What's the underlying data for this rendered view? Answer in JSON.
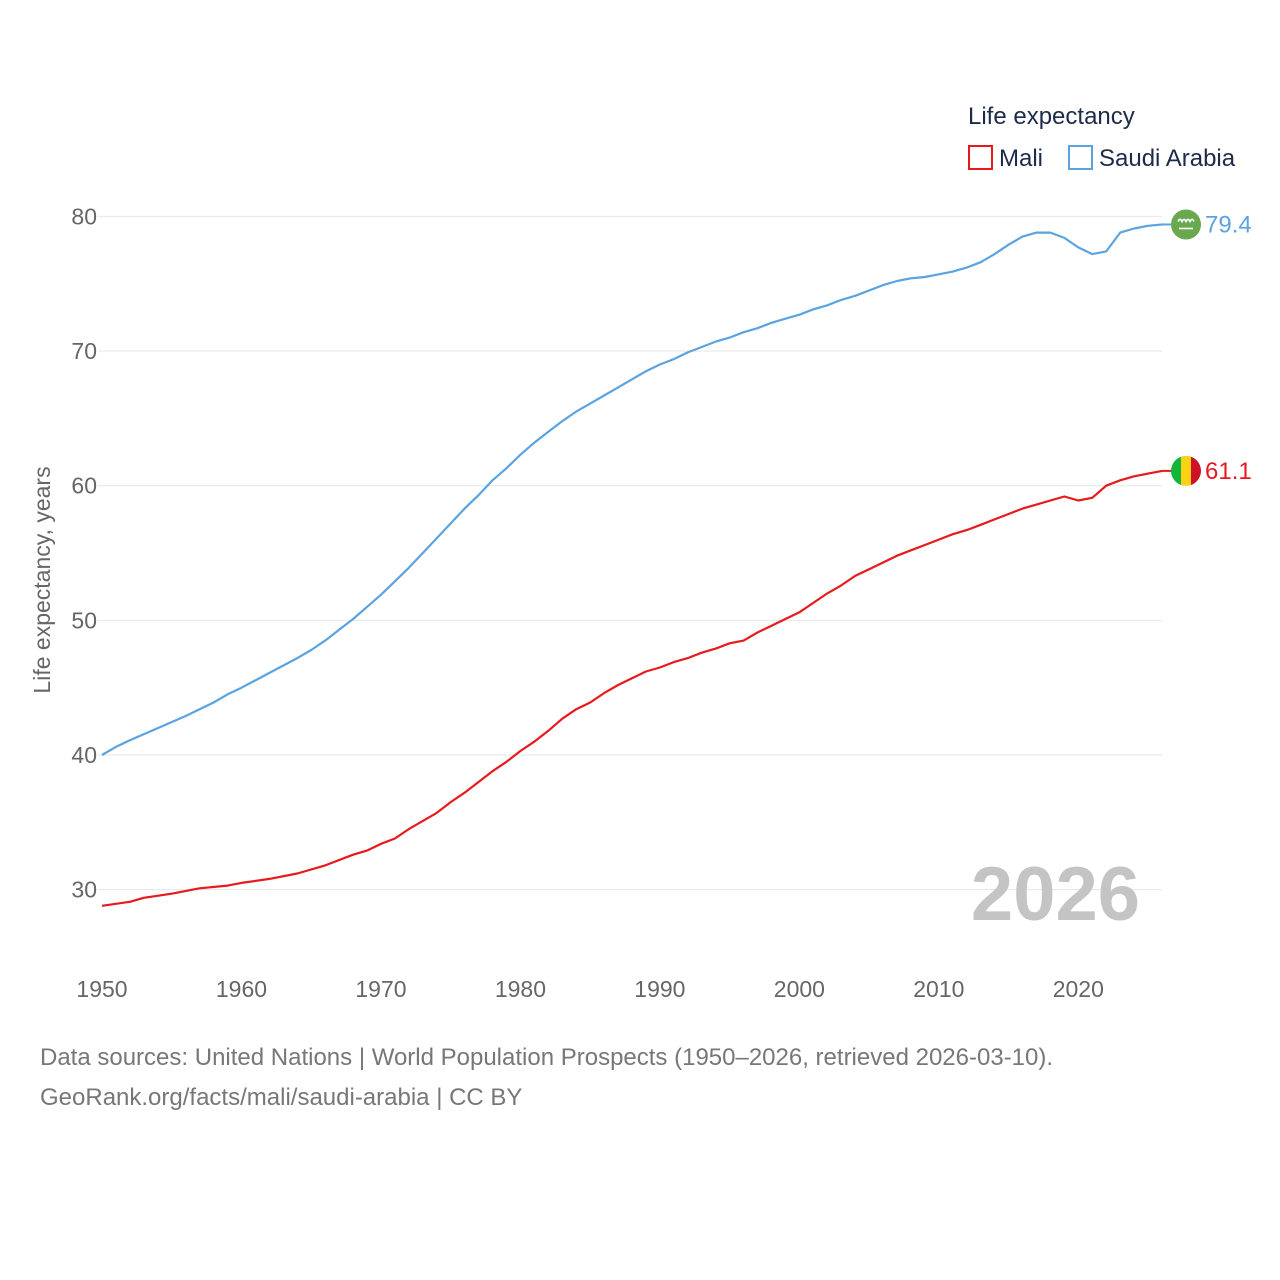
{
  "chart_data": {
    "type": "line",
    "title": "Life expectancy",
    "ylabel": "Life expectancy, years",
    "xlabel": "",
    "xlim": [
      1950,
      2026
    ],
    "ylim": [
      25,
      83
    ],
    "x_ticks": [
      "1950",
      "1960",
      "1970",
      "1980",
      "1990",
      "2000",
      "2010",
      "2020"
    ],
    "y_ticks": [
      "30",
      "40",
      "50",
      "60",
      "70",
      "80"
    ],
    "year_label": "2026",
    "series": [
      {
        "name": "Mali",
        "color": "#e8191c",
        "icon": "mali-flag-icon",
        "end_label": "61.1",
        "points": [
          [
            1950,
            28.8
          ],
          [
            1952,
            29.1
          ],
          [
            1953,
            29.4
          ],
          [
            1955,
            29.7
          ],
          [
            1957,
            30.1
          ],
          [
            1959,
            30.3
          ],
          [
            1960,
            30.5
          ],
          [
            1962,
            30.8
          ],
          [
            1964,
            31.2
          ],
          [
            1966,
            31.8
          ],
          [
            1968,
            32.6
          ],
          [
            1969,
            32.9
          ],
          [
            1970,
            33.4
          ],
          [
            1971,
            33.8
          ],
          [
            1972,
            34.5
          ],
          [
            1974,
            35.7
          ],
          [
            1975,
            36.5
          ],
          [
            1976,
            37.2
          ],
          [
            1978,
            38.8
          ],
          [
            1979,
            39.5
          ],
          [
            1980,
            40.3
          ],
          [
            1981,
            41.0
          ],
          [
            1982,
            41.8
          ],
          [
            1983,
            42.7
          ],
          [
            1984,
            43.4
          ],
          [
            1985,
            43.9
          ],
          [
            1986,
            44.6
          ],
          [
            1987,
            45.2
          ],
          [
            1988,
            45.7
          ],
          [
            1989,
            46.2
          ],
          [
            1990,
            46.5
          ],
          [
            1991,
            46.9
          ],
          [
            1992,
            47.2
          ],
          [
            1993,
            47.6
          ],
          [
            1994,
            47.9
          ],
          [
            1995,
            48.3
          ],
          [
            1996,
            48.5
          ],
          [
            1997,
            49.1
          ],
          [
            1998,
            49.6
          ],
          [
            1999,
            50.1
          ],
          [
            2000,
            50.6
          ],
          [
            2001,
            51.3
          ],
          [
            2002,
            52.0
          ],
          [
            2003,
            52.6
          ],
          [
            2004,
            53.3
          ],
          [
            2005,
            53.8
          ],
          [
            2006,
            54.3
          ],
          [
            2007,
            54.8
          ],
          [
            2008,
            55.2
          ],
          [
            2009,
            55.6
          ],
          [
            2010,
            56.0
          ],
          [
            2011,
            56.4
          ],
          [
            2012,
            56.7
          ],
          [
            2013,
            57.1
          ],
          [
            2014,
            57.5
          ],
          [
            2015,
            57.9
          ],
          [
            2016,
            58.3
          ],
          [
            2017,
            58.6
          ],
          [
            2018,
            58.9
          ],
          [
            2019,
            59.2
          ],
          [
            2020,
            58.9
          ],
          [
            2021,
            59.1
          ],
          [
            2022,
            60.0
          ],
          [
            2023,
            60.4
          ],
          [
            2024,
            60.7
          ],
          [
            2025,
            60.9
          ],
          [
            2026,
            61.1
          ]
        ]
      },
      {
        "name": "Saudi Arabia",
        "color": "#5ba3e0",
        "icon": "saudi-arabia-flag-icon",
        "end_label": "79.4",
        "points": [
          [
            1950,
            40.0
          ],
          [
            1951,
            40.6
          ],
          [
            1952,
            41.1
          ],
          [
            1954,
            42.0
          ],
          [
            1956,
            42.9
          ],
          [
            1957,
            43.4
          ],
          [
            1958,
            43.9
          ],
          [
            1959,
            44.5
          ],
          [
            1960,
            45.0
          ],
          [
            1962,
            46.1
          ],
          [
            1964,
            47.2
          ],
          [
            1965,
            47.8
          ],
          [
            1966,
            48.5
          ],
          [
            1967,
            49.3
          ],
          [
            1968,
            50.1
          ],
          [
            1969,
            51.0
          ],
          [
            1970,
            51.9
          ],
          [
            1971,
            52.9
          ],
          [
            1972,
            53.9
          ],
          [
            1973,
            55.0
          ],
          [
            1974,
            56.1
          ],
          [
            1975,
            57.2
          ],
          [
            1976,
            58.3
          ],
          [
            1977,
            59.3
          ],
          [
            1978,
            60.4
          ],
          [
            1979,
            61.3
          ],
          [
            1980,
            62.3
          ],
          [
            1981,
            63.2
          ],
          [
            1982,
            64.0
          ],
          [
            1983,
            64.8
          ],
          [
            1984,
            65.5
          ],
          [
            1985,
            66.1
          ],
          [
            1986,
            66.7
          ],
          [
            1987,
            67.3
          ],
          [
            1988,
            67.9
          ],
          [
            1989,
            68.5
          ],
          [
            1990,
            69.0
          ],
          [
            1991,
            69.4
          ],
          [
            1992,
            69.9
          ],
          [
            1993,
            70.3
          ],
          [
            1994,
            70.7
          ],
          [
            1995,
            71.0
          ],
          [
            1996,
            71.4
          ],
          [
            1997,
            71.7
          ],
          [
            1998,
            72.1
          ],
          [
            1999,
            72.4
          ],
          [
            2000,
            72.7
          ],
          [
            2001,
            73.1
          ],
          [
            2002,
            73.4
          ],
          [
            2003,
            73.8
          ],
          [
            2004,
            74.1
          ],
          [
            2005,
            74.5
          ],
          [
            2006,
            74.9
          ],
          [
            2007,
            75.2
          ],
          [
            2008,
            75.4
          ],
          [
            2009,
            75.5
          ],
          [
            2010,
            75.7
          ],
          [
            2011,
            75.9
          ],
          [
            2012,
            76.2
          ],
          [
            2013,
            76.6
          ],
          [
            2014,
            77.2
          ],
          [
            2015,
            77.9
          ],
          [
            2016,
            78.5
          ],
          [
            2017,
            78.8
          ],
          [
            2018,
            78.8
          ],
          [
            2019,
            78.4
          ],
          [
            2020,
            77.7
          ],
          [
            2021,
            77.2
          ],
          [
            2022,
            77.4
          ],
          [
            2023,
            78.8
          ],
          [
            2024,
            79.1
          ],
          [
            2025,
            79.3
          ],
          [
            2026,
            79.4
          ]
        ]
      }
    ]
  },
  "footer": {
    "line1": "Data sources: United Nations | World Population Prospects (1950–2026, retrieved 2026-03-10).",
    "line2": "GeoRank.org/facts/mali/saudi-arabia | CC BY"
  }
}
